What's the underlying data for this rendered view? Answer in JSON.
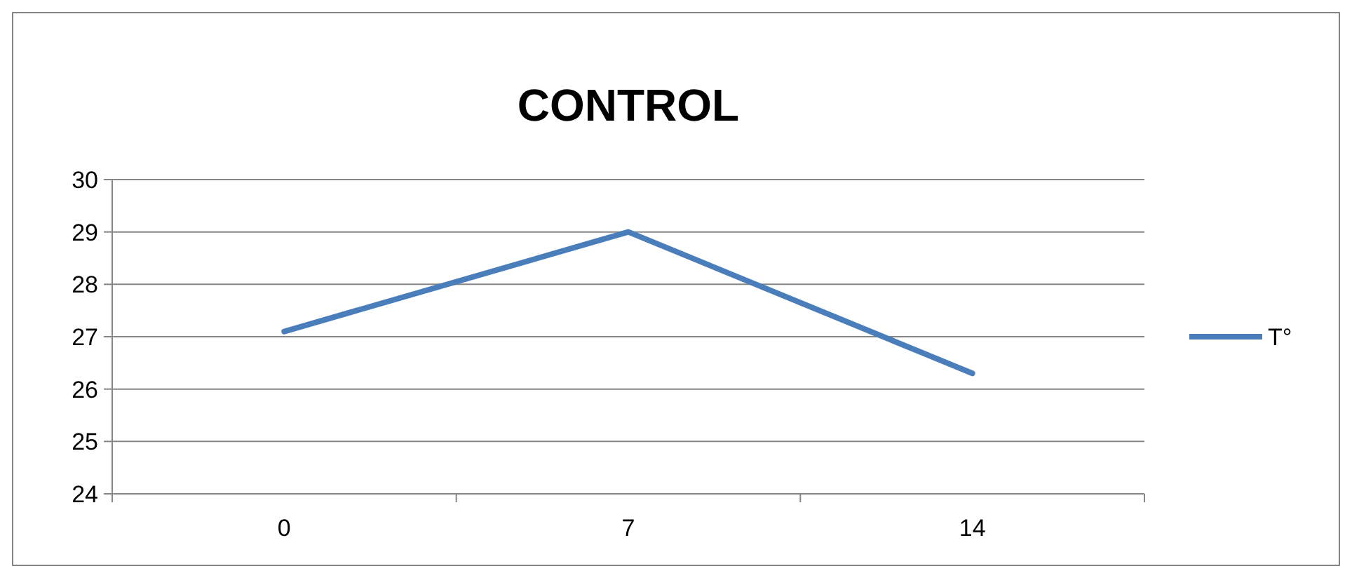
{
  "chart_data": {
    "type": "line",
    "title": "CONTROL",
    "categories": [
      "0",
      "7",
      "14"
    ],
    "series": [
      {
        "name": "T°",
        "color": "#4a7ebb",
        "values": [
          27.1,
          29,
          26.3
        ]
      }
    ],
    "ylim": [
      24,
      30
    ],
    "yticks": [
      24,
      25,
      26,
      27,
      28,
      29,
      30
    ],
    "grid": "y",
    "legend": "right",
    "marker": "none",
    "line_style": "solid"
  }
}
